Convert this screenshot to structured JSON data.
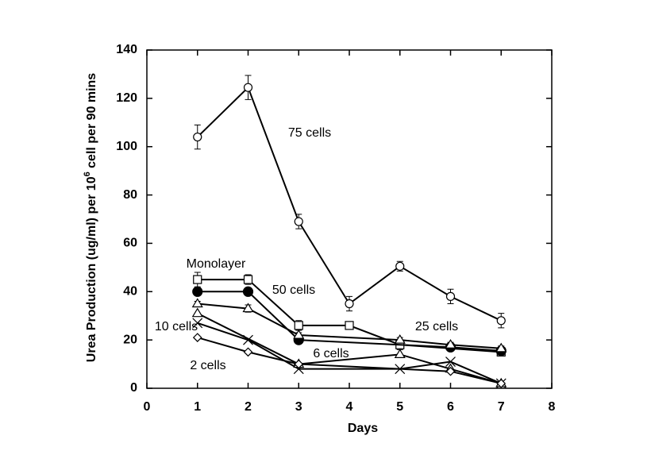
{
  "chart_data": {
    "type": "line",
    "xlabel": "Days",
    "ylabel": [
      "Urea Production (ug/ml) per 10",
      "6",
      " cell per 90 mins"
    ],
    "xlim": [
      0,
      8
    ],
    "xticks": [
      0,
      1,
      2,
      3,
      4,
      5,
      6,
      7,
      8
    ],
    "ylim": [
      0,
      140
    ],
    "yticks": [
      0,
      20,
      40,
      60,
      80,
      100,
      120,
      140
    ],
    "color": "#000000",
    "series": [
      {
        "name": "75 cells",
        "marker": "circle",
        "x": [
          1,
          2,
          3,
          4,
          5,
          6,
          7
        ],
        "values": [
          104,
          124.5,
          69,
          35,
          50.5,
          38,
          28
        ],
        "errors": [
          5,
          5,
          3,
          3,
          2,
          3,
          3
        ]
      },
      {
        "name": "Monolayer",
        "marker": "square",
        "x": [
          1,
          2,
          3,
          4,
          5,
          7
        ],
        "values": [
          45,
          45,
          26,
          26,
          18,
          15
        ],
        "errors": [
          3,
          2,
          2,
          1,
          2,
          1
        ]
      },
      {
        "name": "50 cells",
        "marker": "filled-circle",
        "x": [
          1,
          2,
          3,
          6,
          7
        ],
        "values": [
          40,
          40,
          20,
          17,
          15.5
        ]
      },
      {
        "name": "25 cells",
        "marker": "triangle",
        "x": [
          1,
          2,
          3,
          5,
          6,
          7
        ],
        "values": [
          35,
          33,
          22,
          20,
          18,
          16.5
        ],
        "errors": [
          1,
          1.5,
          1,
          1,
          1,
          1
        ]
      },
      {
        "name": "10 cells",
        "marker": "cross",
        "x": [
          1,
          2,
          3,
          5,
          6,
          7
        ],
        "values": [
          27,
          20,
          8,
          8,
          11,
          2
        ]
      },
      {
        "name": "6 cells",
        "marker": "triangle",
        "x": [
          1,
          3,
          5,
          6,
          7
        ],
        "values": [
          31,
          10,
          14,
          8,
          2
        ]
      },
      {
        "name": "2 cells",
        "marker": "diamond",
        "x": [
          1,
          2,
          3,
          6,
          7
        ],
        "values": [
          21,
          15,
          10,
          7,
          2
        ]
      }
    ]
  }
}
